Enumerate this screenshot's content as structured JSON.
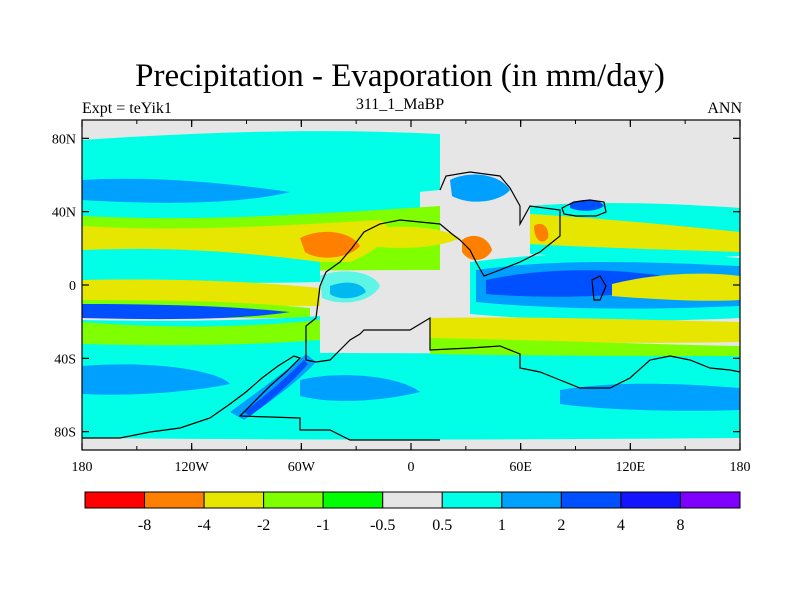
{
  "chart_data": {
    "type": "heatmap",
    "title": "Precipitation - Evaporation (in mm/day)",
    "left_label": "Expt = teYik1",
    "center_label": "311_1_MaBP",
    "right_label": "ANN",
    "x_ticks": [
      "180",
      "120W",
      "60W",
      "0",
      "60E",
      "120E",
      "180"
    ],
    "y_ticks": [
      "80N",
      "40N",
      "0",
      "40S",
      "80S"
    ],
    "x_range": [
      -180,
      180
    ],
    "y_range": [
      -90,
      90
    ],
    "colorbar": {
      "levels": [
        "-8",
        "-4",
        "-2",
        "-1",
        "-0.5",
        "0.5",
        "1",
        "2",
        "4",
        "8"
      ],
      "colors": [
        "#ff0000",
        "#ff8000",
        "#e6e600",
        "#80ff00",
        "#00ff00",
        "#e6e6e6",
        "#00ffe6",
        "#00a0ff",
        "#0050ff",
        "#1414ff",
        "#8000ff"
      ]
    }
  }
}
